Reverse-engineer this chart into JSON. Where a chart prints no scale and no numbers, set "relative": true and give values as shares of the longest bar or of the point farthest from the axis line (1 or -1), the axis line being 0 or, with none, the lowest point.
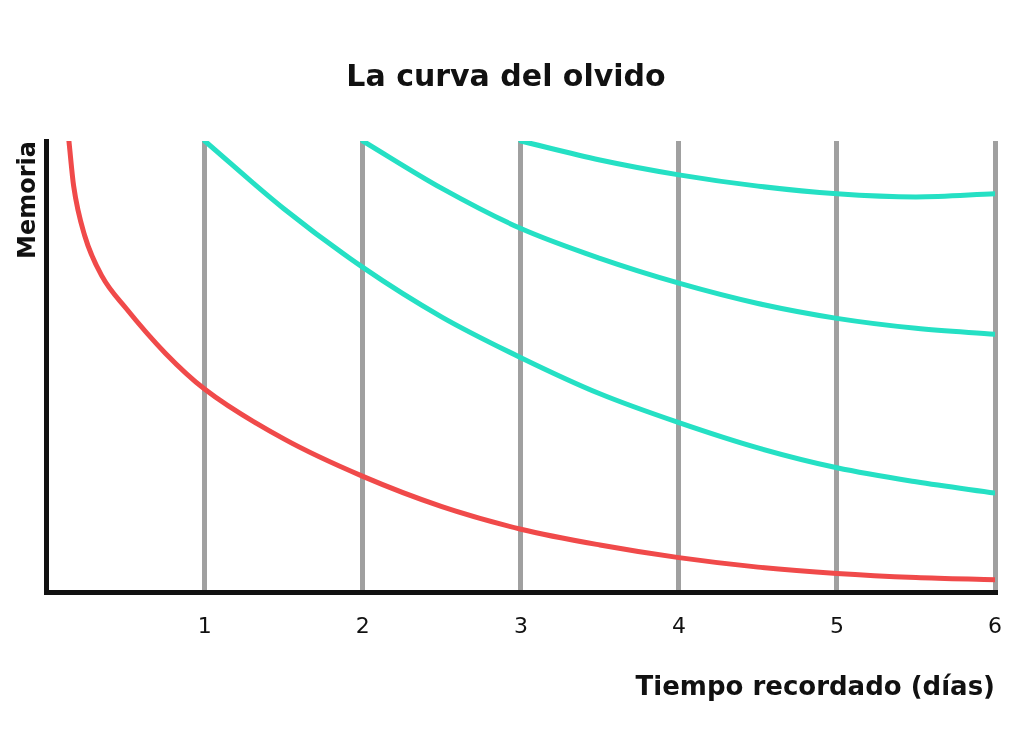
{
  "chart_data": {
    "type": "line",
    "title": "La curva del olvido",
    "xlabel": "Tiempo recordado (días)",
    "ylabel": "Memoria",
    "relative": true,
    "xlim": [
      0,
      6
    ],
    "xticks": [
      1,
      2,
      3,
      4,
      5,
      6
    ],
    "grid": "x",
    "legend": false,
    "marker": "none",
    "line_style": "solid",
    "series": [
      {
        "color": "#f04a4a",
        "x": [
          0.14,
          0.17,
          0.24,
          0.35,
          0.5,
          0.75,
          1,
          1.5,
          2,
          2.5,
          3,
          3.5,
          4,
          4.5,
          5,
          5.5,
          6
        ],
        "values": [
          1,
          0.9,
          0.79,
          0.7,
          0.63,
          0.53,
          0.45,
          0.34,
          0.257,
          0.19,
          0.14,
          0.105,
          0.077,
          0.056,
          0.042,
          0.033,
          0.028
        ]
      },
      {
        "color": "#25e0c4",
        "x": [
          1,
          1.5,
          2,
          2.5,
          3,
          3.5,
          4,
          4.5,
          5,
          5.5,
          6
        ],
        "values": [
          1,
          0.85,
          0.72,
          0.61,
          0.52,
          0.44,
          0.376,
          0.32,
          0.276,
          0.245,
          0.22
        ]
      },
      {
        "color": "#25e0c4",
        "x": [
          2,
          2.5,
          3,
          3.5,
          4,
          4.5,
          5,
          5.5,
          6
        ],
        "values": [
          1,
          0.895,
          0.806,
          0.74,
          0.685,
          0.64,
          0.607,
          0.585,
          0.572
        ]
      },
      {
        "color": "#25e0c4",
        "x": [
          3,
          3.5,
          4,
          4.5,
          5,
          5.5,
          6
        ],
        "values": [
          1,
          0.958,
          0.925,
          0.9,
          0.883,
          0.876,
          0.883
        ]
      }
    ]
  }
}
